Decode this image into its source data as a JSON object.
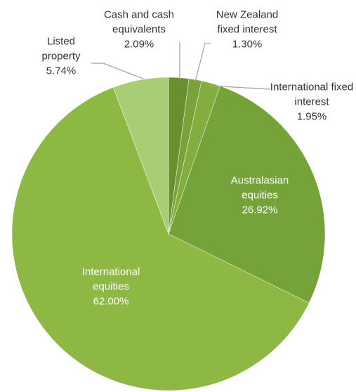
{
  "chart_data": {
    "type": "pie",
    "categories": [
      "Cash and cash equivalents",
      "New Zealand fixed interest",
      "International fixed interest",
      "Australasian equities",
      "International equities",
      "Listed property"
    ],
    "values": [
      2.09,
      1.3,
      1.95,
      26.92,
      62.0,
      5.74
    ],
    "value_labels": [
      "2.09%",
      "1.30%",
      "1.95%",
      "26.92%",
      "62.00%",
      "5.74%"
    ],
    "colors": [
      "#6b8f2f",
      "#7aa23a",
      "#84ad40",
      "#76a23a",
      "#8cb843",
      "#a9cd74"
    ]
  }
}
